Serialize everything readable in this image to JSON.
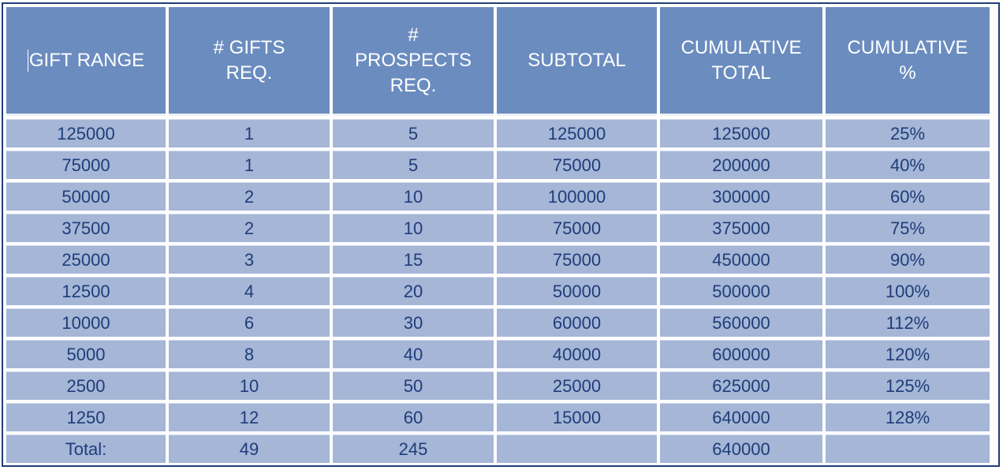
{
  "table": {
    "headers": [
      "GIFT RANGE",
      "# GIFTS\nREQ.",
      "#\nPROSPECTS\nREQ.",
      "SUBTOTAL",
      "CUMULATIVE\nTOTAL",
      "CUMULATIVE\n%"
    ],
    "rows": [
      [
        "125000",
        "1",
        "5",
        "125000",
        "125000",
        "25%"
      ],
      [
        "75000",
        "1",
        "5",
        "75000",
        "200000",
        "40%"
      ],
      [
        "50000",
        "2",
        "10",
        "100000",
        "300000",
        "60%"
      ],
      [
        "37500",
        "2",
        "10",
        "75000",
        "375000",
        "75%"
      ],
      [
        "25000",
        "3",
        "15",
        "75000",
        "450000",
        "90%"
      ],
      [
        "12500",
        "4",
        "20",
        "50000",
        "500000",
        "100%"
      ],
      [
        "10000",
        "6",
        "30",
        "60000",
        "560000",
        "112%"
      ],
      [
        "5000",
        "8",
        "40",
        "40000",
        "600000",
        "120%"
      ],
      [
        "2500",
        "10",
        "50",
        "25000",
        "625000",
        "125%"
      ],
      [
        "1250",
        "12",
        "60",
        "15000",
        "640000",
        "128%"
      ],
      [
        "Total:",
        "49",
        "245",
        "",
        "640000",
        ""
      ]
    ]
  },
  "colors": {
    "header_bg": "#6b8cbf",
    "cell_bg": "#a5b6d6",
    "cell_text": "#1f3d7a",
    "border": "#1f3d7a"
  }
}
